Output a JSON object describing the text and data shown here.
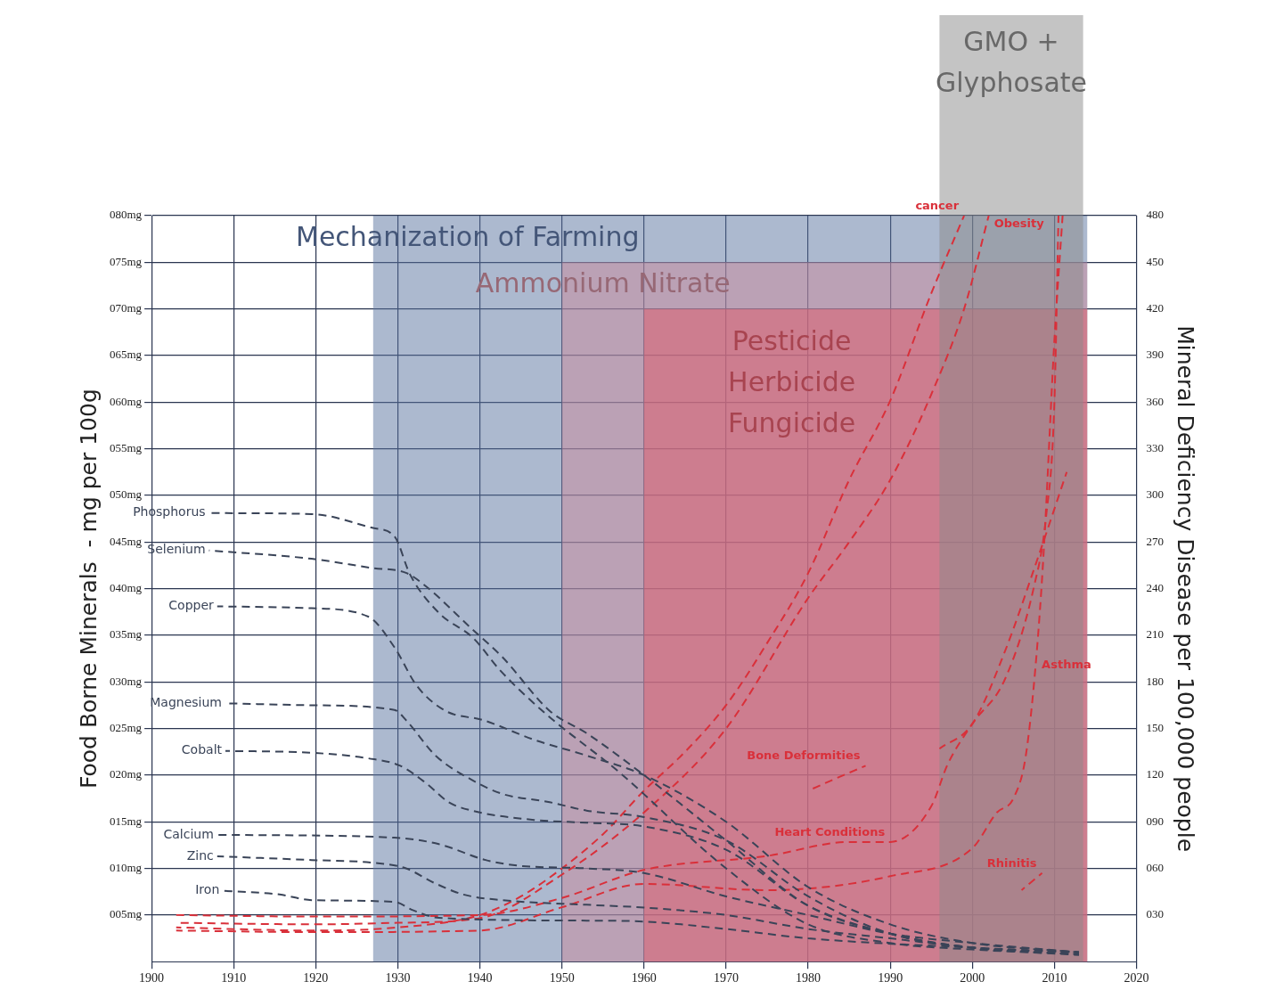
{
  "chart_data": {
    "type": "line",
    "xlabel": null,
    "ylabel": "Food Borne Minerals  - mg per 100g",
    "y2label": "Mineral Deficiency Disease per 100,000 people",
    "xlim": [
      1900,
      2020
    ],
    "xticks": [
      1900,
      1910,
      1920,
      1930,
      1940,
      1950,
      1960,
      1970,
      1980,
      1990,
      2000,
      2010,
      2020
    ],
    "ylim": [
      0,
      80
    ],
    "yticks": [
      {
        "value": 5,
        "label": "005mg"
      },
      {
        "value": 10,
        "label": "010mg"
      },
      {
        "value": 15,
        "label": "015mg"
      },
      {
        "value": 20,
        "label": "020mg"
      },
      {
        "value": 25,
        "label": "025mg"
      },
      {
        "value": 30,
        "label": "030mg"
      },
      {
        "value": 35,
        "label": "035mg"
      },
      {
        "value": 40,
        "label": "040mg"
      },
      {
        "value": 45,
        "label": "045mg"
      },
      {
        "value": 50,
        "label": "050mg"
      },
      {
        "value": 55,
        "label": "055mg"
      },
      {
        "value": 60,
        "label": "060mg"
      },
      {
        "value": 65,
        "label": "065mg"
      },
      {
        "value": 70,
        "label": "070mg"
      },
      {
        "value": 75,
        "label": "075mg"
      },
      {
        "value": 80,
        "label": "080mg"
      }
    ],
    "y2lim": [
      0,
      480
    ],
    "y2ticks": [
      {
        "value": 30,
        "label": "030"
      },
      {
        "value": 60,
        "label": "060"
      },
      {
        "value": 90,
        "label": "090"
      },
      120,
      150,
      180,
      210,
      240,
      270,
      300,
      330,
      360,
      390,
      420,
      450,
      480
    ],
    "grid": true,
    "marker": "none",
    "line_style": "dashed",
    "bands": [
      {
        "axis": "x",
        "from": 1927,
        "to": 2014,
        "label": "Mechanization of Farming",
        "color": "#5a73a0"
      },
      {
        "axis": "x",
        "from": 1950,
        "to": 2014,
        "label": "Ammonium Nitrate",
        "color": "#c98a9c"
      },
      {
        "axis": "x",
        "from": 1960,
        "to": 2014,
        "label": "Pesticide\nHerbicide\nFungicide",
        "color": "#e05a6a"
      },
      {
        "axis": "x",
        "from": 1996,
        "to": 2013.5,
        "label": "GMO +\nGlyphosate",
        "color": "#8a8a8a"
      }
    ],
    "series": [
      {
        "name": "Phosphorus",
        "color": "#3a4458",
        "x": [
          1907,
          1919.5,
          1927,
          1929.6,
          1931.5,
          1935,
          1939.2,
          1942.4,
          1948,
          1957,
          1970,
          1980,
          1990,
          2000,
          2013
        ],
        "values": [
          48.1,
          48,
          46.5,
          45.6,
          41.5,
          37.4,
          34.7,
          31.3,
          26.6,
          20.3,
          10,
          4,
          2,
          1.3,
          0.8
        ]
      },
      {
        "name": "Selenium",
        "color": "#3a4458",
        "x": [
          1907,
          1919.5,
          1927,
          1931,
          1933.5,
          1939,
          1942.7,
          1948.5,
          1953,
          1960,
          1970,
          1980,
          1990,
          2000,
          2013
        ],
        "values": [
          44.1,
          43.2,
          42.2,
          41.7,
          40.2,
          35.7,
          32.7,
          26.9,
          24.5,
          20,
          13,
          6,
          3,
          1.5,
          1
        ]
      },
      {
        "name": "Copper",
        "color": "#3a4458",
        "x": [
          1908,
          1919.5,
          1926.4,
          1929.6,
          1932.3,
          1935.8,
          1940.4,
          1946.6,
          1953,
          1960,
          1970,
          1980,
          1990,
          2000,
          2013
        ],
        "values": [
          38.1,
          37.9,
          37,
          33.7,
          29.6,
          26.9,
          25.9,
          23.8,
          22.1,
          20,
          15,
          8,
          4,
          2,
          1
        ]
      },
      {
        "name": "Magnesium",
        "color": "#3a4458",
        "x": [
          1909,
          1919.5,
          1929.6,
          1931,
          1934.6,
          1939,
          1942.7,
          1948.5,
          1953,
          1960,
          1970,
          1980,
          1990,
          2000,
          2013
        ],
        "values": [
          27.7,
          27.5,
          27,
          25.9,
          22.1,
          19.5,
          18,
          17.1,
          16.2,
          15.5,
          13,
          7,
          3,
          1.5,
          0.8
        ]
      },
      {
        "name": "Cobalt",
        "color": "#3a4458",
        "x": [
          1909,
          1919.5,
          1926.4,
          1930.3,
          1933.5,
          1936.2,
          1939,
          1946.6,
          1953,
          1960,
          1970,
          1980,
          1990,
          2000,
          2013
        ],
        "values": [
          22.6,
          22.4,
          21.8,
          21,
          19.1,
          17.1,
          16.2,
          15.2,
          14.9,
          14.5,
          12,
          6,
          3,
          1.5,
          0.7
        ]
      },
      {
        "name": "Calcium",
        "color": "#3a4458",
        "x": [
          1908,
          1929.6,
          1935,
          1940.7,
          1944.6,
          1953,
          1960,
          1970,
          1980,
          1990,
          2000,
          2013
        ],
        "values": [
          13.6,
          13.3,
          12.6,
          10.9,
          10.3,
          10,
          9.5,
          7,
          5,
          3,
          2,
          1
        ]
      },
      {
        "name": "Zinc",
        "color": "#3a4458",
        "x": [
          1908,
          1919.5,
          1927,
          1931,
          1934.3,
          1938,
          1942.7,
          1953,
          1960,
          1970,
          1980,
          1990,
          2000,
          2013
        ],
        "values": [
          11.3,
          10.9,
          10.6,
          10,
          8.5,
          7.2,
          6.6,
          6.1,
          5.8,
          5,
          3.5,
          2.5,
          1.5,
          1
        ]
      },
      {
        "name": "Iron",
        "color": "#3a4458",
        "x": [
          1908.7,
          1915.6,
          1919.5,
          1929.6,
          1931.9,
          1935,
          1953,
          1960,
          1970,
          1980,
          2000,
          2013
        ],
        "values": [
          7.6,
          7.2,
          6.6,
          6.4,
          5.5,
          4.7,
          4.4,
          4.3,
          3.5,
          2.5,
          1.5,
          1
        ]
      },
      {
        "name": "cancer",
        "color": "#d9303a",
        "axis": "y2",
        "x": [
          1903,
          1920,
          1930,
          1940,
          1945,
          1950,
          1955,
          1960,
          1965,
          1970,
          1975,
          1980,
          1985,
          1990,
          1995,
          1999
        ],
        "values": [
          22,
          20,
          22,
          30,
          42,
          60,
          82,
          110,
          135,
          165,
          205,
          250,
          310,
          361,
          430,
          480
        ]
      },
      {
        "name": "Obesity",
        "color": "#d9303a",
        "axis": "y2",
        "x": [
          1903,
          1920,
          1930,
          1940,
          1950,
          1960,
          1970,
          1980,
          1985,
          1990,
          1995,
          1999,
          2002
        ],
        "values": [
          25,
          24,
          25,
          28,
          56,
          96,
          150,
          234,
          270,
          310,
          365,
          420,
          480
        ]
      },
      {
        "name": "Heart Conditions",
        "color": "#d9303a",
        "axis": "y2",
        "x": [
          1903,
          1920,
          1940,
          1950,
          1960,
          1975,
          1985,
          1990,
          1995,
          1997,
          2000,
          2004,
          2007.5,
          2009,
          2010,
          2010.5
        ],
        "values": [
          30,
          29,
          30,
          41,
          59,
          68,
          77,
          77,
          100,
          127,
          153,
          182,
          241,
          287,
          360,
          480
        ]
      },
      {
        "name": "Asthma",
        "color": "#d9303a",
        "axis": "y2",
        "x": [
          1903,
          1920,
          1940,
          1950,
          1960,
          1975,
          1990,
          2000,
          2003,
          2005,
          2006.5,
          2007.8,
          2008.7,
          2010,
          2011
        ],
        "values": [
          20,
          19,
          20,
          35,
          50,
          46,
          55,
          73,
          96,
          105,
          132,
          196,
          264,
          400,
          480
        ]
      },
      {
        "name": "Bone Deformities",
        "color": "#d9303a",
        "axis": "y2",
        "x": [
          1980,
          1983,
          1987
        ],
        "values": [
          110,
          117,
          126
        ]
      },
      {
        "color": "#d9303a",
        "axis": "y2",
        "x": [
          1996,
          2000,
          2004,
          2008,
          2011.5
        ],
        "values": [
          137,
          153,
          200,
          260,
          315
        ]
      },
      {
        "name": "Rhinitis",
        "color": "#d9303a",
        "axis": "y2",
        "x": [
          2006,
          2008.5
        ],
        "values": [
          46,
          57
        ]
      }
    ]
  }
}
